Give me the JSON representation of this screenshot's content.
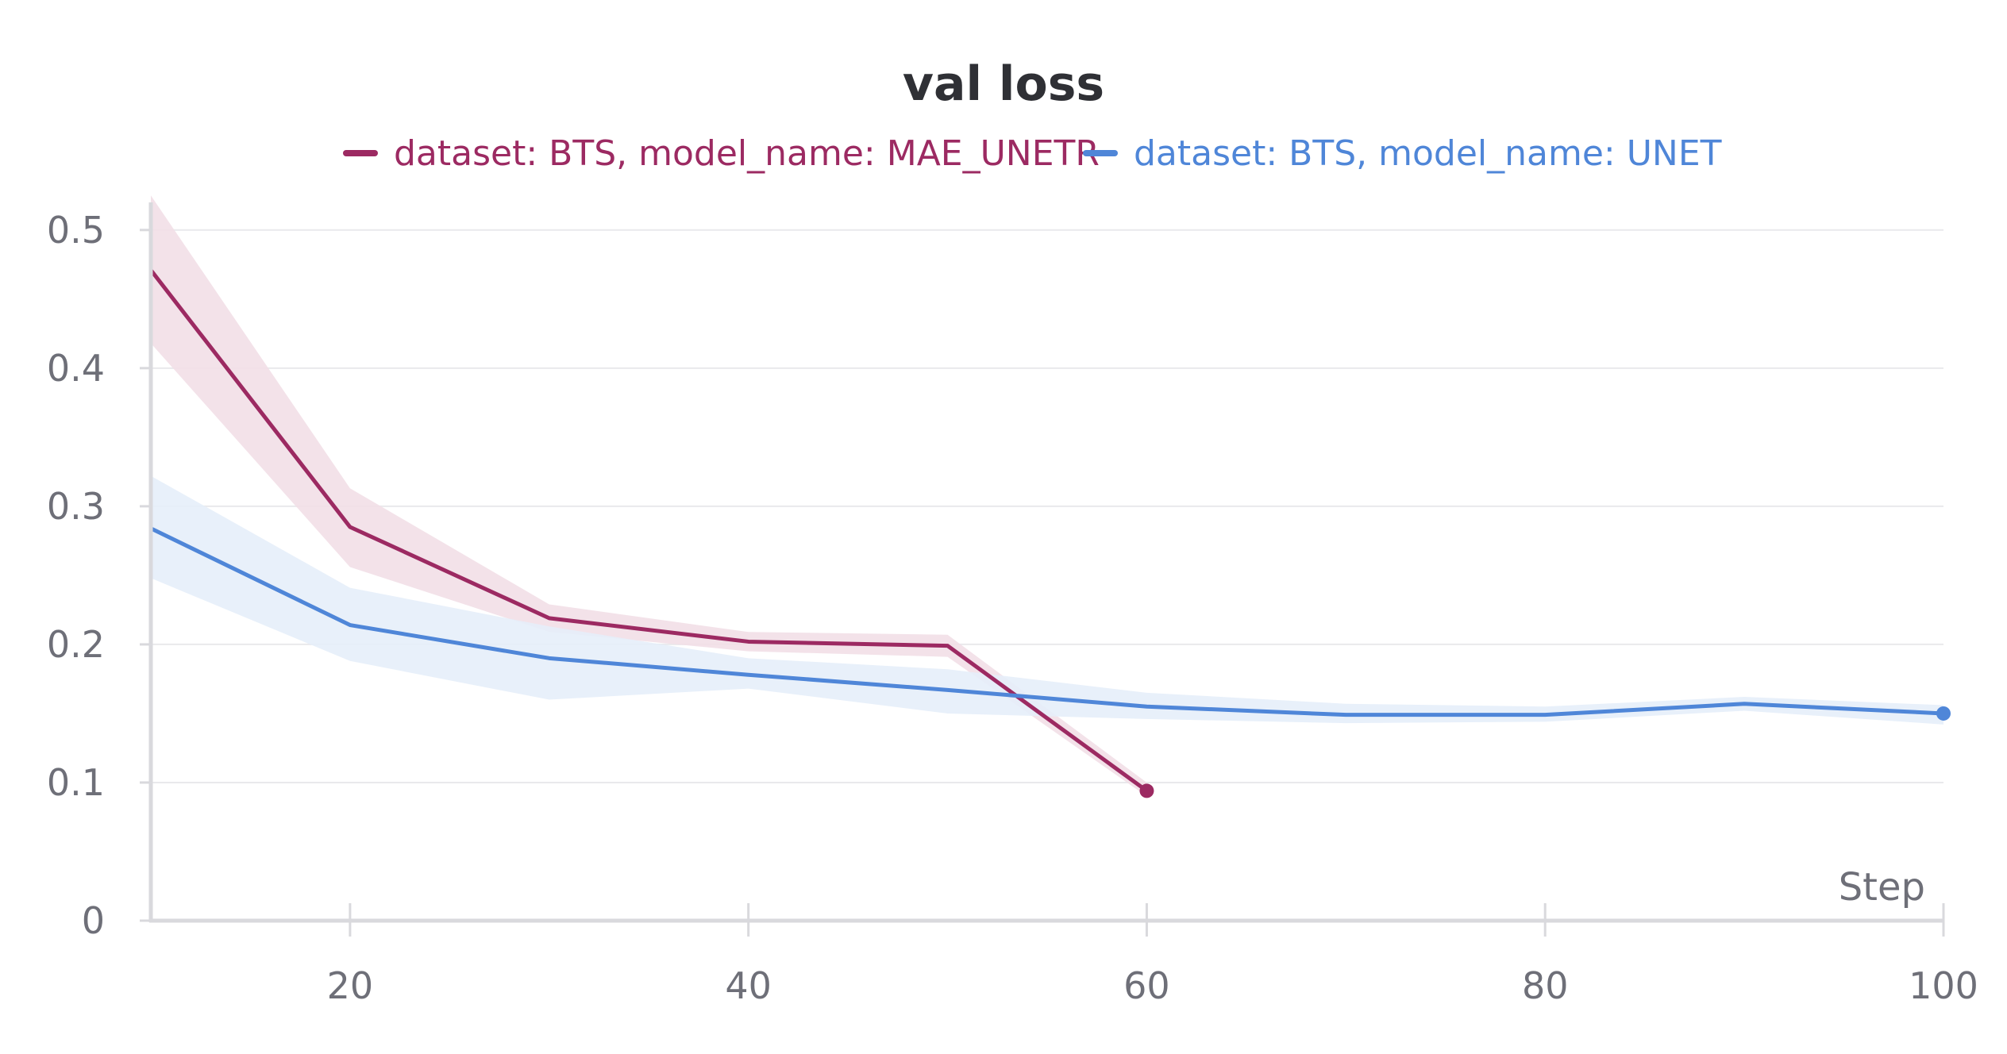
{
  "chart_data": {
    "type": "line",
    "title": "val loss",
    "xlabel": "Step",
    "ylabel": "",
    "xlim": [
      10,
      100
    ],
    "ylim": [
      0,
      0.52
    ],
    "x_ticks": [
      20,
      40,
      60,
      80,
      100
    ],
    "x_tick_labels": [
      "20",
      "40",
      "60",
      "80",
      "100"
    ],
    "y_ticks": [
      0,
      0.1,
      0.2,
      0.3,
      0.4,
      0.5
    ],
    "y_tick_labels": [
      "0",
      "0.1",
      "0.2",
      "0.3",
      "0.4",
      "0.5"
    ],
    "grid": true,
    "legend_position": "top-center",
    "series": [
      {
        "name": "dataset: BTS, model_name: MAE_UNETR",
        "color": "#9c2a62",
        "band_color": "#f2dfe7",
        "x": [
          10,
          20,
          30,
          40,
          50,
          60
        ],
        "values": [
          0.471,
          0.285,
          0.219,
          0.202,
          0.199,
          0.094
        ],
        "band_upper": [
          0.525,
          0.313,
          0.229,
          0.209,
          0.207,
          0.1
        ],
        "band_lower": [
          0.418,
          0.256,
          0.209,
          0.195,
          0.191,
          0.09
        ]
      },
      {
        "name": "dataset: BTS, model_name: UNET",
        "color": "#4f86d8",
        "band_color": "#e6eefa",
        "x": [
          10,
          20,
          30,
          40,
          50,
          60,
          70,
          80,
          90,
          100
        ],
        "values": [
          0.284,
          0.214,
          0.19,
          0.178,
          0.167,
          0.155,
          0.149,
          0.149,
          0.157,
          0.15
        ],
        "band_upper": [
          0.322,
          0.241,
          0.213,
          0.19,
          0.182,
          0.165,
          0.157,
          0.155,
          0.162,
          0.156
        ],
        "band_lower": [
          0.248,
          0.188,
          0.16,
          0.168,
          0.15,
          0.146,
          0.143,
          0.144,
          0.152,
          0.142
        ]
      }
    ]
  }
}
